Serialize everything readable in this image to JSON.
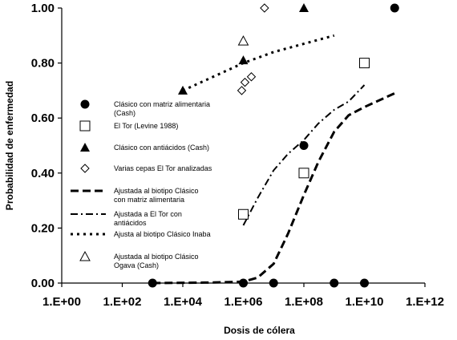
{
  "chart_data": {
    "type": "scatter",
    "xscale": "log10",
    "xlim": [
      "1.E+00",
      "1.E+12"
    ],
    "ylim": [
      0.0,
      1.0
    ],
    "xlabel": "Dosis de cólera",
    "ylabel": "Probabilidad de enfermedad",
    "x_ticks": [
      {
        "label": "1.E+00",
        "exp": 0
      },
      {
        "label": "1.E+02",
        "exp": 2
      },
      {
        "label": "1.E+04",
        "exp": 4
      },
      {
        "label": "1.E+06",
        "exp": 6
      },
      {
        "label": "1.E+08",
        "exp": 8
      },
      {
        "label": "1.E+10",
        "exp": 10
      },
      {
        "label": "1.E+12",
        "exp": 12
      }
    ],
    "y_ticks": [
      {
        "label": "0.00",
        "value": 0.0
      },
      {
        "label": "0.20",
        "value": 0.2
      },
      {
        "label": "0.40",
        "value": 0.4
      },
      {
        "label": "0.60",
        "value": 0.6
      },
      {
        "label": "0.80",
        "value": 0.8
      },
      {
        "label": "1.00",
        "value": 1.0
      }
    ],
    "series": [
      {
        "key": "cash-matrix",
        "name": "Clásico con matriz alimentaria (Cash)",
        "marker": "filled-circle",
        "points": [
          [
            "1.E+03",
            0.0
          ],
          [
            "1.E+06",
            0.0
          ],
          [
            "1.E+07",
            0.0
          ],
          [
            "1.E+08",
            0.5
          ],
          [
            "1.E+09",
            0.0
          ],
          [
            "1.E+10",
            0.0
          ],
          [
            "1.E+11",
            1.0
          ]
        ]
      },
      {
        "key": "levine",
        "name": "El Tor (Levine 1988)",
        "marker": "open-square",
        "points": [
          [
            "1.E+06",
            0.25
          ],
          [
            "1.E+08",
            0.4
          ],
          [
            "1.E+10",
            0.8
          ]
        ]
      },
      {
        "key": "cash-antacid",
        "name": "Clásico con antiácidos (Cash)",
        "marker": "filled-triangle",
        "points": [
          [
            "1.E+04",
            0.7
          ],
          [
            "1.E+06",
            0.81
          ],
          [
            "1.E+08",
            1.0
          ]
        ]
      },
      {
        "key": "eltor-strains",
        "name": "Varias cepas El Tor analizadas",
        "marker": "open-diamond",
        "points": [
          [
            "1.E+06",
            0.7
          ],
          [
            "1.E+06",
            0.73
          ],
          [
            "1.E+06",
            0.75
          ],
          [
            "5.E+06",
            1.0
          ]
        ]
      },
      {
        "key": "ogawa",
        "name": "Ajustada al biotipo Clásico Ogava (Cash)",
        "marker": "open-triangle",
        "points": [
          [
            "1.E+06",
            0.88
          ]
        ]
      }
    ],
    "fitted_curves": [
      {
        "key": "fit-matrix",
        "name": "Ajustada al biotipo Clásico con matriz alimentaria",
        "style": "long-dash",
        "points": [
          [
            "1.E+03",
            0.0
          ],
          [
            "1.E+05",
            0.002
          ],
          [
            "1.E+06",
            0.005
          ],
          [
            "3.E+06",
            0.02
          ],
          [
            "1.E+07",
            0.07
          ],
          [
            "3.E+07",
            0.18
          ],
          [
            "1.E+08",
            0.32
          ],
          [
            "3.E+08",
            0.44
          ],
          [
            "1.E+09",
            0.55
          ],
          [
            "3.E+09",
            0.61
          ],
          [
            "1.E+10",
            0.64
          ],
          [
            "1.E+11",
            0.69
          ]
        ]
      },
      {
        "key": "fit-eltor",
        "name": "Ajustada a El Tor con antiácidos",
        "style": "dash-dot",
        "points": [
          [
            "1.E+06",
            0.21
          ],
          [
            "3.E+06",
            0.31
          ],
          [
            "1.E+07",
            0.41
          ],
          [
            "3.E+07",
            0.47
          ],
          [
            "1.E+08",
            0.52
          ],
          [
            "3.E+08",
            0.58
          ],
          [
            "1.E+09",
            0.63
          ],
          [
            "3.E+09",
            0.66
          ],
          [
            "1.E+10",
            0.72
          ]
        ]
      },
      {
        "key": "fit-inaba",
        "name": "Ajusta al biotipo Clásico Inaba",
        "style": "dotted",
        "points": [
          [
            "1.E+04",
            0.7
          ],
          [
            "1.E+05",
            0.75
          ],
          [
            "1.E+06",
            0.8
          ],
          [
            "1.E+07",
            0.84
          ],
          [
            "1.E+08",
            0.87
          ],
          [
            "1.E+09",
            0.9
          ]
        ]
      }
    ],
    "legend": {
      "placement": "inside-left",
      "items": [
        {
          "lines": [
            "Clásico con matriz alimentaria",
            "(Cash)"
          ],
          "kind": "marker",
          "symbol": "filled-circle"
        },
        {
          "lines": [
            "El Tor (Levine 1988)"
          ],
          "kind": "marker",
          "symbol": "open-square"
        },
        {
          "lines": [
            "Clásico con antiácidos (Cash)"
          ],
          "kind": "marker",
          "symbol": "filled-triangle"
        },
        {
          "lines": [
            "Varias cepas El Tor analizadas"
          ],
          "kind": "marker",
          "symbol": "open-diamond"
        },
        {
          "lines": [
            "Ajustada al biotipo Clásico",
            "con matriz alimentaria"
          ],
          "kind": "line",
          "symbol": "long-dash"
        },
        {
          "lines": [
            "Ajustada a El Tor con",
            "antiácidos"
          ],
          "kind": "line",
          "symbol": "dash-dot"
        },
        {
          "lines": [
            "Ajusta al biotipo Clásico Inaba"
          ],
          "kind": "line",
          "symbol": "dotted"
        },
        {
          "lines": [
            "Ajustada al biotipo Clásico",
            "Ogava (Cash)"
          ],
          "kind": "marker",
          "symbol": "open-triangle"
        }
      ]
    }
  }
}
